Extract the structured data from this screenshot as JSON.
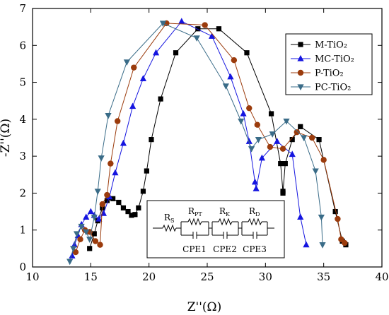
{
  "chart_data": {
    "type": "scatter",
    "xlabel": "Z''(Ω)",
    "ylabel": "-Z''(Ω)",
    "xlim": [
      10,
      40
    ],
    "ylim": [
      0,
      7
    ],
    "xticks": [
      "10",
      "15",
      "20",
      "25",
      "30",
      "35",
      "40"
    ],
    "yticks": [
      "0",
      "1",
      "2",
      "3",
      "4",
      "5",
      "6",
      "7"
    ],
    "grid": false,
    "legend_position": "top-right",
    "series": [
      {
        "name": "M-TiO₂",
        "color": "#000000",
        "marker": "square",
        "points": [
          [
            14.9,
            0.5
          ],
          [
            15.3,
            0.9
          ],
          [
            15.6,
            1.25
          ],
          [
            16.0,
            1.6
          ],
          [
            16.4,
            1.8
          ],
          [
            16.9,
            1.85
          ],
          [
            17.4,
            1.75
          ],
          [
            17.8,
            1.6
          ],
          [
            18.2,
            1.5
          ],
          [
            18.5,
            1.4
          ],
          [
            18.8,
            1.42
          ],
          [
            19.1,
            1.6
          ],
          [
            19.5,
            2.05
          ],
          [
            19.8,
            2.6
          ],
          [
            20.2,
            3.45
          ],
          [
            21.0,
            4.55
          ],
          [
            22.3,
            5.8
          ],
          [
            24.2,
            6.45
          ],
          [
            26.0,
            6.45
          ],
          [
            28.4,
            5.8
          ],
          [
            30.5,
            4.15
          ],
          [
            31.3,
            2.8
          ],
          [
            31.5,
            2.05
          ],
          [
            31.5,
            2.0
          ],
          [
            31.7,
            2.8
          ],
          [
            32.3,
            3.45
          ],
          [
            33.0,
            3.8
          ],
          [
            34.6,
            3.45
          ],
          [
            36.0,
            1.5
          ],
          [
            36.6,
            0.7
          ],
          [
            36.9,
            0.6
          ]
        ]
      },
      {
        "name": "MC-TiO₂",
        "color": "#1515e0",
        "marker": "triangle-up",
        "points": [
          [
            13.4,
            0.3
          ],
          [
            13.6,
            0.6
          ],
          [
            13.9,
            0.85
          ],
          [
            14.2,
            1.15
          ],
          [
            14.6,
            1.35
          ],
          [
            15.0,
            1.5
          ],
          [
            15.3,
            1.4
          ],
          [
            15.7,
            1.3
          ],
          [
            16.1,
            1.45
          ],
          [
            16.6,
            1.9
          ],
          [
            17.1,
            2.55
          ],
          [
            17.8,
            3.35
          ],
          [
            18.6,
            4.35
          ],
          [
            19.5,
            5.1
          ],
          [
            20.6,
            5.8
          ],
          [
            22.8,
            6.65
          ],
          [
            25.4,
            6.25
          ],
          [
            27.0,
            5.15
          ],
          [
            28.1,
            4.15
          ],
          [
            28.6,
            3.4
          ],
          [
            29.1,
            2.3
          ],
          [
            29.2,
            2.12
          ],
          [
            29.7,
            2.95
          ],
          [
            31.0,
            3.4
          ],
          [
            32.3,
            3.05
          ],
          [
            33.0,
            1.35
          ],
          [
            33.5,
            0.6
          ]
        ]
      },
      {
        "name": "P-TiO₂",
        "color": "#9b3b0c",
        "marker": "circle",
        "points": [
          [
            13.7,
            0.4
          ],
          [
            14.1,
            0.75
          ],
          [
            14.5,
            1.0
          ],
          [
            14.9,
            0.95
          ],
          [
            15.4,
            0.7
          ],
          [
            15.8,
            0.6
          ],
          [
            16.0,
            1.7
          ],
          [
            16.4,
            1.95
          ],
          [
            16.7,
            2.8
          ],
          [
            17.3,
            3.95
          ],
          [
            18.7,
            5.4
          ],
          [
            21.5,
            6.6
          ],
          [
            24.8,
            6.55
          ],
          [
            27.3,
            5.6
          ],
          [
            28.6,
            4.3
          ],
          [
            29.3,
            3.85
          ],
          [
            30.4,
            3.25
          ],
          [
            31.5,
            3.2
          ],
          [
            32.7,
            3.65
          ],
          [
            34.0,
            3.5
          ],
          [
            35.0,
            2.9
          ],
          [
            36.2,
            1.3
          ],
          [
            36.5,
            0.75
          ],
          [
            36.8,
            0.65
          ]
        ]
      },
      {
        "name": "PC-TiO₂",
        "color": "#3a6c88",
        "marker": "triangle-down",
        "points": [
          [
            13.2,
            0.15
          ],
          [
            13.5,
            0.5
          ],
          [
            13.8,
            0.9
          ],
          [
            14.2,
            1.1
          ],
          [
            14.6,
            0.95
          ],
          [
            14.9,
            0.75
          ],
          [
            15.3,
            1.35
          ],
          [
            15.6,
            2.05
          ],
          [
            15.9,
            2.95
          ],
          [
            16.5,
            4.1
          ],
          [
            18.1,
            5.55
          ],
          [
            21.2,
            6.6
          ],
          [
            24.1,
            6.2
          ],
          [
            26.6,
            4.9
          ],
          [
            27.9,
            3.95
          ],
          [
            28.8,
            3.2
          ],
          [
            29.4,
            3.45
          ],
          [
            30.6,
            3.6
          ],
          [
            31.8,
            3.95
          ],
          [
            33.3,
            3.5
          ],
          [
            34.3,
            2.6
          ],
          [
            34.8,
            1.35
          ],
          [
            34.9,
            0.6
          ]
        ]
      }
    ]
  },
  "circuit": {
    "labels": {
      "rs": "R",
      "rs_sub": "S",
      "rpt": "R",
      "rpt_sub": "PT",
      "rk": "R",
      "rk_sub": "K",
      "rd": "R",
      "rd_sub": "D",
      "cpe1": "CPE1",
      "cpe2": "CPE2",
      "cpe3": "CPE3"
    }
  }
}
